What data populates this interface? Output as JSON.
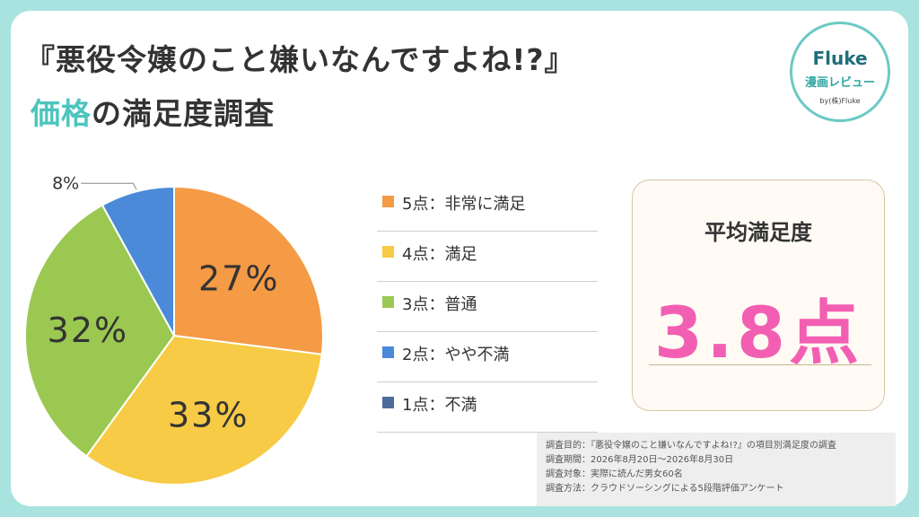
{
  "title_line1": "『悪役令嬢のこと嫌いなんですよね!?』",
  "title_line2_accent": "価格",
  "title_line2_rest": "の満足度調査",
  "badge": {
    "brand": "Fluke",
    "sub": "漫画レビュー",
    "by": "by(株)Fluke"
  },
  "chart_data": {
    "type": "pie",
    "slices": [
      {
        "category": "5点：非常に満足",
        "label": "27%",
        "value": 27,
        "color": "#f59a45"
      },
      {
        "category": "4点：満足",
        "label": "33%",
        "value": 33,
        "color": "#f7cb45"
      },
      {
        "category": "3点：普通",
        "label": "32%",
        "value": 32,
        "color": "#9bc851"
      },
      {
        "category": "2点：やや不満",
        "label": "8%",
        "value": 8,
        "color": "#4a8ad8"
      },
      {
        "category": "1点：不満",
        "label": "",
        "value": 0,
        "color": "#4d6c9c"
      }
    ]
  },
  "average": {
    "title": "平均満足度",
    "value": "3.8点"
  },
  "notes": [
    "調査目的：『悪役令嬢のこと嫌いなんですよね!?』の項目別満足度の調査",
    "調査期間：2026年8月20日〜2026年8月30日",
    "調査対象：実際に読んだ男女60名",
    "調査方法：クラウドソーシングによる5段階評価アンケート"
  ]
}
